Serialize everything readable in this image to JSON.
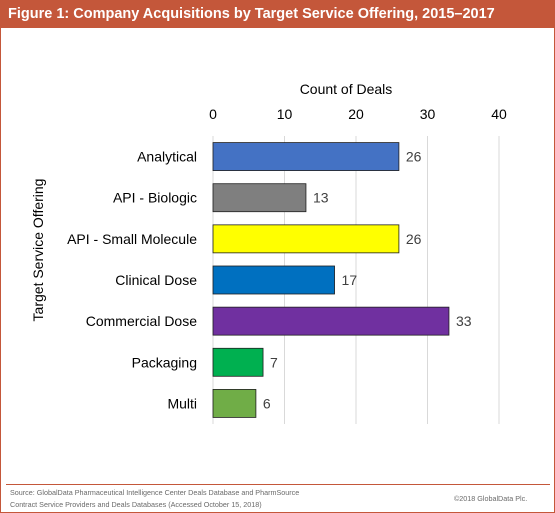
{
  "figure_title": "Figure 1:  Company Acquisitions by Target Service Offering, 2015–2017",
  "source_lines": [
    "Source: GlobalData Pharmaceutical Intelligence Center Deals Database and PharmSource",
    "Contract Service Providers and Deals Databases (Accessed October 15, 2018)"
  ],
  "copyright": "©2018 GlobalData Plc.",
  "chart_data": {
    "type": "bar",
    "orientation": "horizontal",
    "xlabel": "Count of Deals",
    "ylabel": "Target Service Offering",
    "xlim": [
      0,
      40
    ],
    "xticks": [
      0,
      10,
      20,
      30,
      40
    ],
    "x_axis_position": "top",
    "grid": true,
    "categories": [
      "Analytical",
      "API - Biologic",
      "API - Small Molecule",
      "Clinical Dose",
      "Commercial Dose",
      "Packaging",
      "Multi"
    ],
    "values": [
      26,
      13,
      26,
      17,
      33,
      7,
      6
    ],
    "bar_colors": [
      "#4472c4",
      "#7f7f7f",
      "#ffff00",
      "#0070c0",
      "#7030a0",
      "#00b050",
      "#70ad47"
    ]
  }
}
